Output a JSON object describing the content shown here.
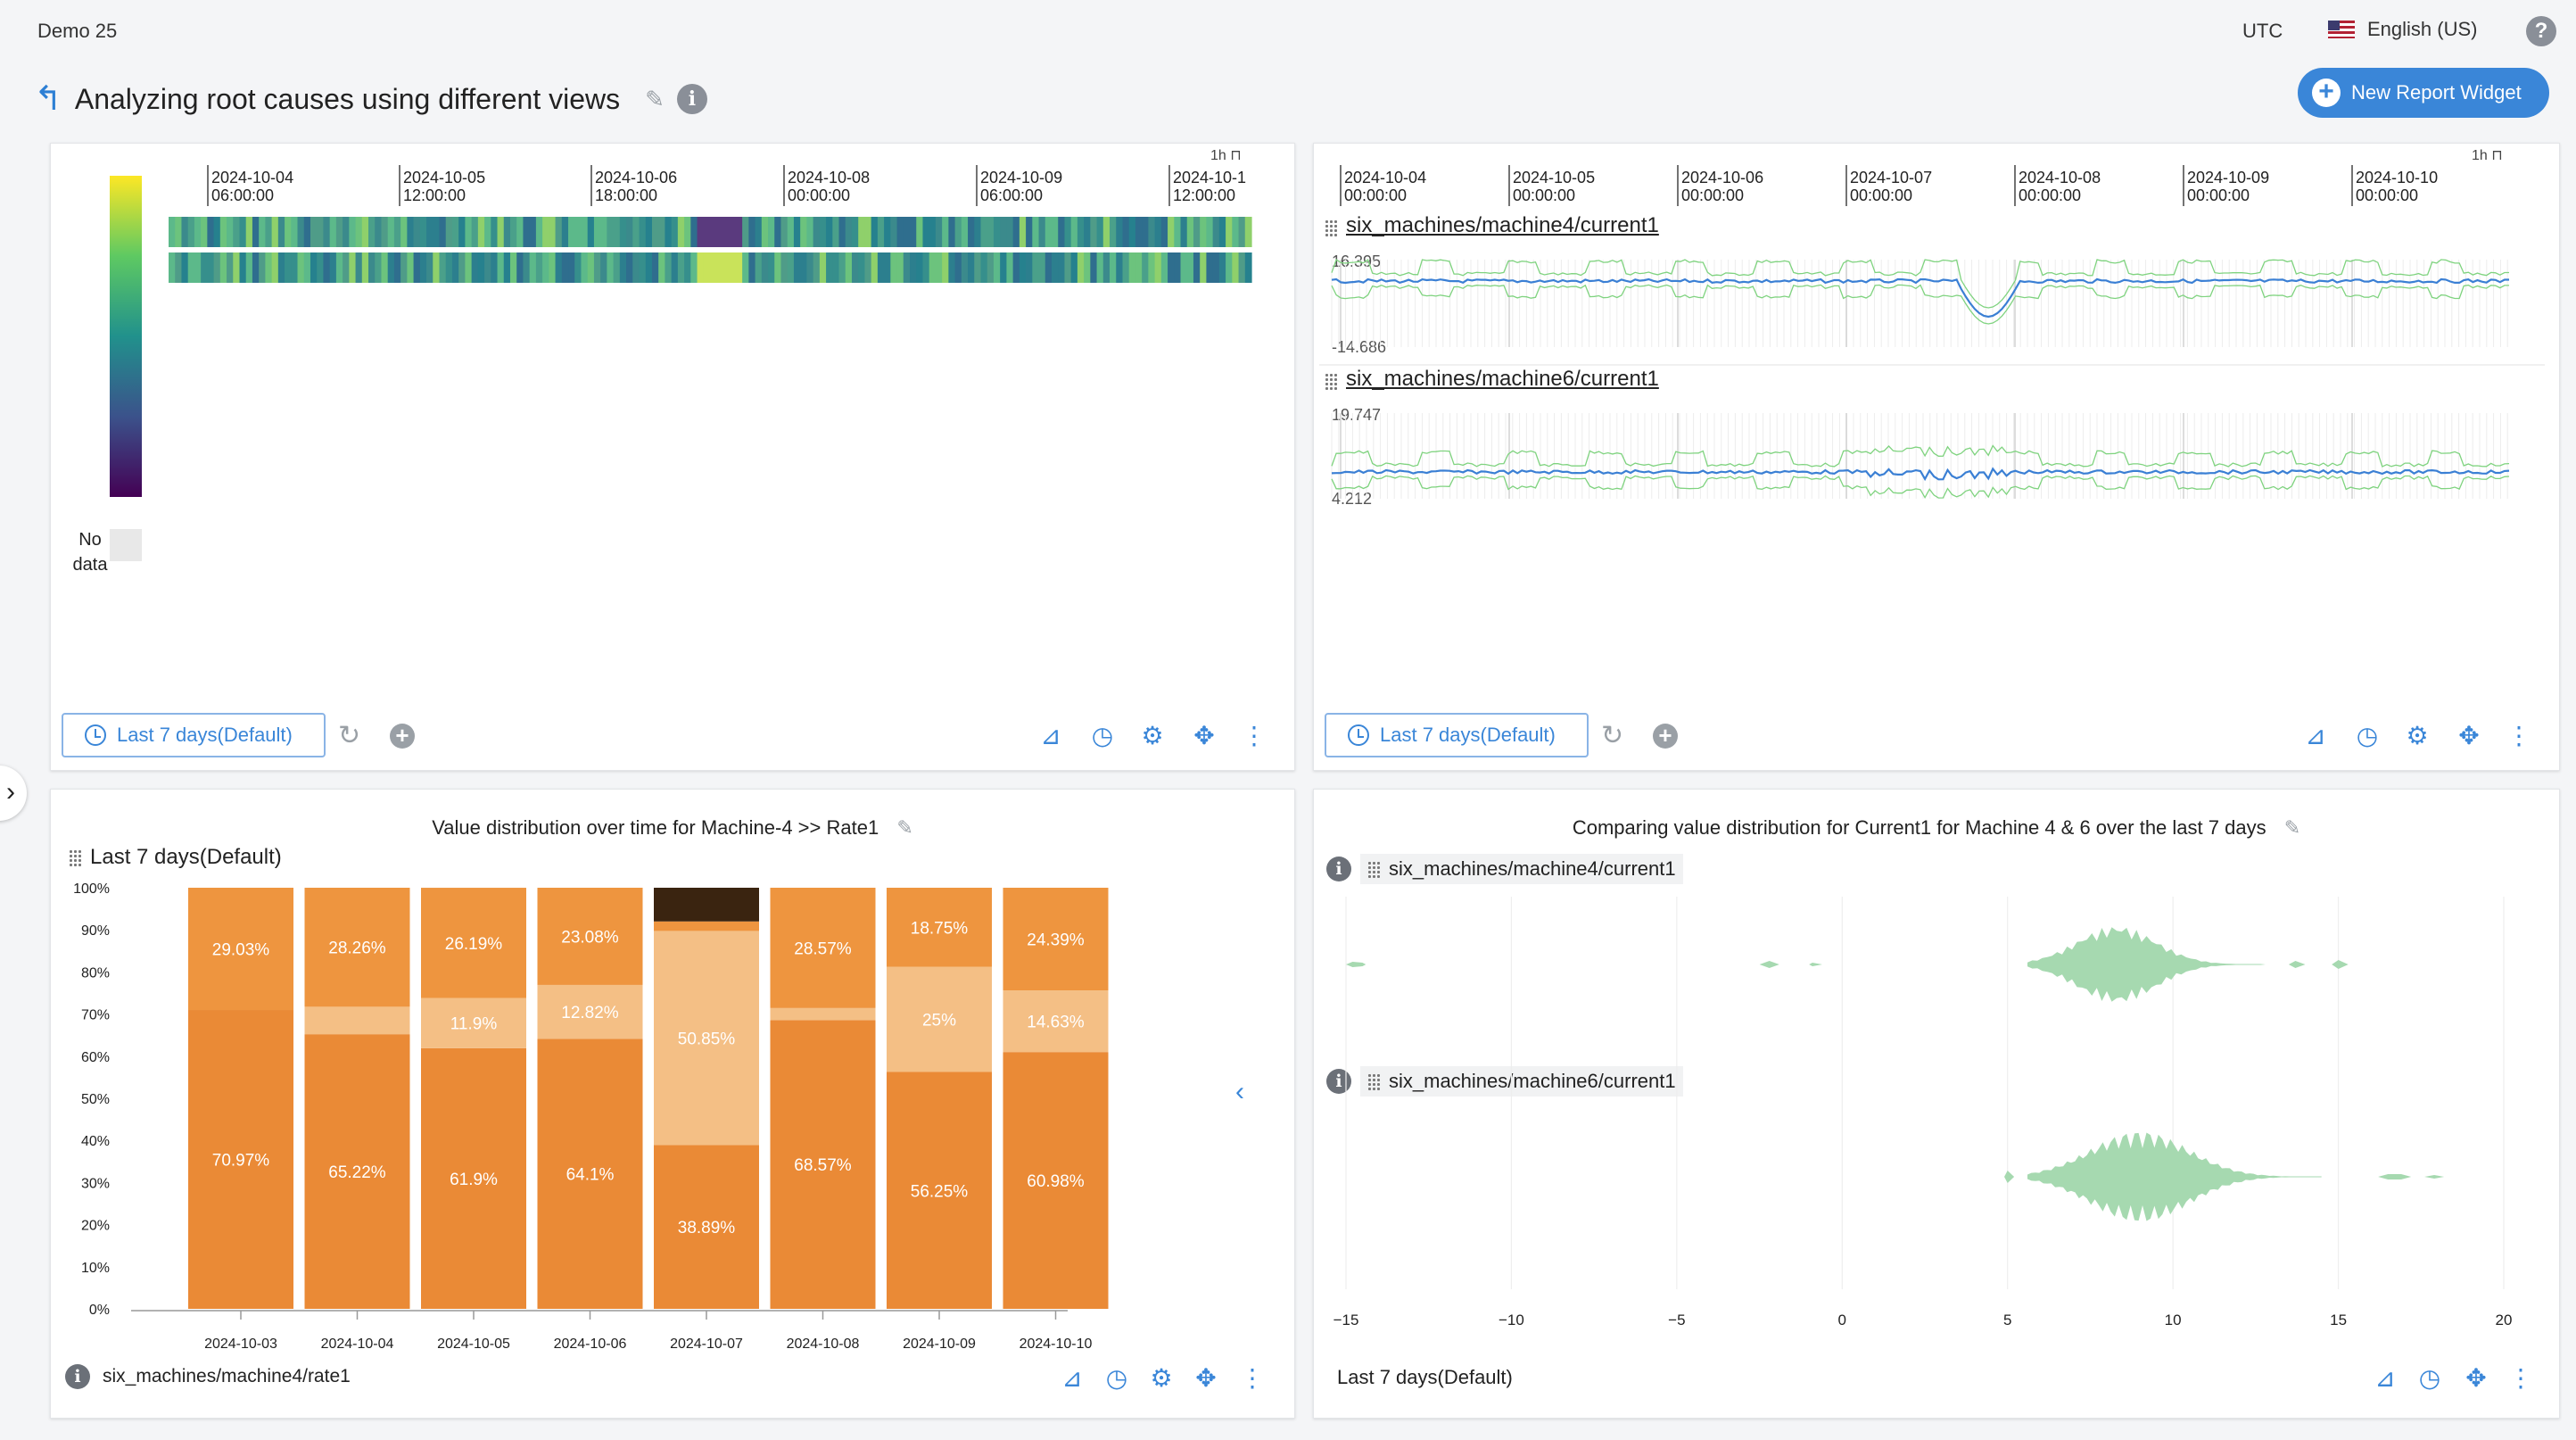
{
  "topbar": {
    "brand": "Demo 25",
    "timezone": "UTC",
    "language": "English (US)",
    "help_icon": "question-icon"
  },
  "header": {
    "title": "Analyzing root causes using different views",
    "new_widget_label": "New Report Widget"
  },
  "heatmap": {
    "time_labels": [
      [
        "2024-10-04",
        "06:00:00"
      ],
      [
        "2024-10-05",
        "12:00:00"
      ],
      [
        "2024-10-06",
        "18:00:00"
      ],
      [
        "2024-10-08",
        "00:00:00"
      ],
      [
        "2024-10-09",
        "06:00:00"
      ],
      [
        "2024-10-1",
        "12:00:00"
      ]
    ],
    "resolution": "1h",
    "legend_no_data": [
      "No",
      "data"
    ],
    "colorscale": [
      "#440154",
      "#3b528b",
      "#21918c",
      "#5ec962",
      "#fde725"
    ],
    "range_label": "Last 7 days(Default)"
  },
  "timeseries": {
    "resolution": "1h",
    "time_labels": [
      [
        "2024-10-04",
        "00:00:00"
      ],
      [
        "2024-10-05",
        "00:00:00"
      ],
      [
        "2024-10-06",
        "00:00:00"
      ],
      [
        "2024-10-07",
        "00:00:00"
      ],
      [
        "2024-10-08",
        "00:00:00"
      ],
      [
        "2024-10-09",
        "00:00:00"
      ],
      [
        "2024-10-10",
        "00:00:00"
      ]
    ],
    "series": [
      {
        "name": "six_machines/machine4/current1",
        "max": "16.395",
        "min": "-14.686"
      },
      {
        "name": "six_machines/machine6/current1",
        "max": "19.747",
        "min": "4.212"
      }
    ],
    "range_label": "Last 7 days(Default)",
    "line_color": "#3a7fd4",
    "band_color": "#7fd37f"
  },
  "barchart": {
    "title": "Value distribution over time for Machine-4 >> Rate1",
    "range_label": "Last 7 days(Default)",
    "source_label": "six_machines/machine4/rate1",
    "chart_data": {
      "type": "bar",
      "stacked": true,
      "categories": [
        "2024-10-03",
        "2024-10-04",
        "2024-10-05",
        "2024-10-06",
        "2024-10-07",
        "2024-10-08",
        "2024-10-09",
        "2024-10-10"
      ],
      "ylim": [
        0,
        100
      ],
      "yticks": [
        "0%",
        "10%",
        "20%",
        "30%",
        "40%",
        "50%",
        "60%",
        "70%",
        "80%",
        "90%",
        "100%"
      ],
      "series": [
        {
          "values": [
            70.97,
            65.22,
            61.9,
            64.1,
            38.89,
            68.57,
            56.25,
            60.98
          ],
          "labels": [
            "70.97%",
            "65.22%",
            "61.9%",
            "64.1%",
            "38.89%",
            "68.57%",
            "56.25%",
            "60.98%"
          ],
          "color": "#ea8a36"
        },
        {
          "values": [
            0,
            6.52,
            11.9,
            12.82,
            50.85,
            2.86,
            25,
            14.63
          ],
          "labels": [
            "",
            "",
            "11.9%",
            "12.82%",
            "50.85%",
            "",
            "25%",
            "14.63%"
          ],
          "color": "#f4bf85"
        },
        {
          "values": [
            29.03,
            28.26,
            26.19,
            23.08,
            2.26,
            28.57,
            18.75,
            24.39
          ],
          "labels": [
            "29.03%",
            "28.26%",
            "26.19%",
            "23.08%",
            "",
            "28.57%",
            "18.75%",
            "24.39%"
          ],
          "color": "#ee953f"
        },
        {
          "values": [
            0,
            0,
            0,
            0,
            8,
            0,
            0,
            0
          ],
          "labels": [
            "",
            "",
            "",
            "",
            "",
            "",
            "",
            ""
          ],
          "color": "#3a2410"
        }
      ]
    }
  },
  "violin": {
    "title": "Comparing value distribution for Current1 for Machine 4 & 6 over the last 7 days",
    "rows": [
      {
        "label": "six_machines/machine4/current1"
      },
      {
        "label": "six_machines/machine6/current1"
      }
    ],
    "xticks": [
      "−15",
      "−10",
      "−5",
      "0",
      "5",
      "10",
      "15",
      "20"
    ],
    "xvals": [
      -15,
      -10,
      -5,
      0,
      5,
      10,
      15,
      20
    ],
    "range_label": "Last 7 days(Default)",
    "color": "#a6d9b0"
  }
}
